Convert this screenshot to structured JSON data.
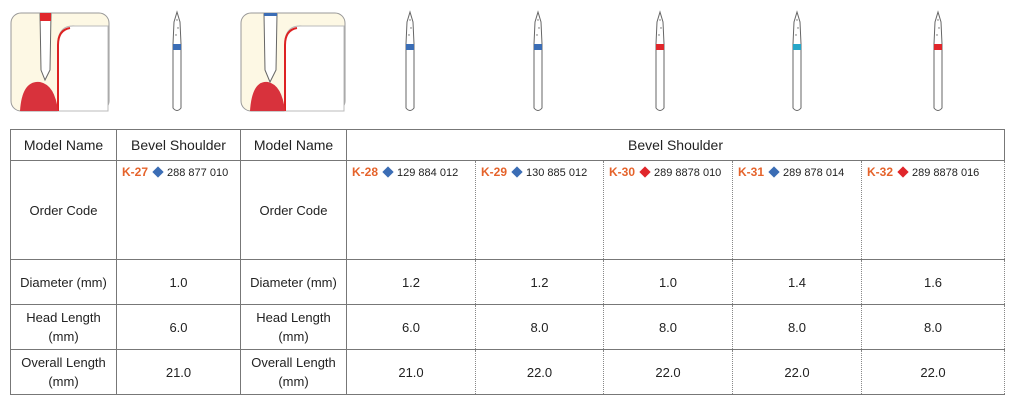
{
  "header": [
    "Model Name",
    "Bevel Shoulder",
    "Model Name",
    "Bevel Shoulder"
  ],
  "row_labels": [
    "Order Code",
    "Diameter (mm)",
    "Head Length (mm)",
    "Overall Length (mm)"
  ],
  "products": [
    {
      "model": "K-27",
      "marker_color": "#3b6db5",
      "code": "288 877 010",
      "diameter": "1.0",
      "head_length": "6.0",
      "overall_length": "21.0"
    },
    {
      "model": "K-28",
      "marker_color": "#3b6db5",
      "code": "129 884 012",
      "diameter": "1.2",
      "head_length": "6.0",
      "overall_length": "21.0"
    },
    {
      "model": "K-29",
      "marker_color": "#3b6db5",
      "code": "130 885 012",
      "diameter": "1.2",
      "head_length": "8.0",
      "overall_length": "22.0"
    },
    {
      "model": "K-30",
      "marker_color": "#e0262b",
      "code": "289 8878 010",
      "diameter": "1.0",
      "head_length": "8.0",
      "overall_length": "22.0"
    },
    {
      "model": "K-31",
      "marker_color": "#3b6db5",
      "code": "289 878 014",
      "diameter": "1.4",
      "head_length": "8.0",
      "overall_length": "22.0"
    },
    {
      "model": "K-32",
      "marker_color": "#e0262b",
      "code": "289 8878 016",
      "diameter": "1.6",
      "head_length": "8.0",
      "overall_length": "22.0"
    }
  ]
}
